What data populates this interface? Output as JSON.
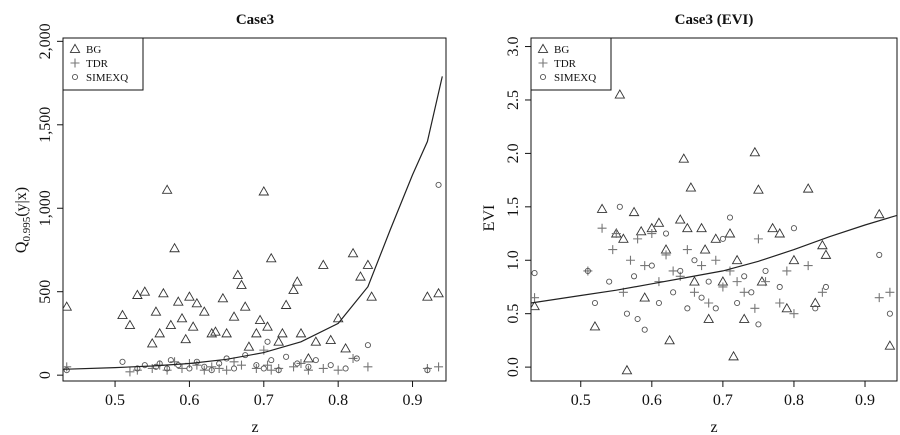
{
  "chart_data": [
    {
      "type": "scatter",
      "title": "Case3",
      "xlabel": "z",
      "ylabel_main": "Q",
      "ylabel_sub": "0.995",
      "ylabel_rest": "(y|x)",
      "xlim": [
        0.43,
        0.945
      ],
      "ylim": [
        0,
        2000
      ],
      "xticks": [
        0.5,
        0.6,
        0.7,
        0.8,
        0.9
      ],
      "xtick_labels": [
        "0.5",
        "0.6",
        "0.7",
        "0.8",
        "0.9"
      ],
      "yticks": [
        0,
        500,
        1000,
        1500,
        2000
      ],
      "ytick_labels": [
        "0",
        "500",
        "1,000",
        "1,500",
        "2,000"
      ],
      "legend": {
        "position": "top-left",
        "entries": [
          {
            "label": "BG",
            "marker": "triangle"
          },
          {
            "label": "TDR",
            "marker": "plus"
          },
          {
            "label": "SIMEXQ",
            "marker": "circle"
          }
        ]
      },
      "series": [
        {
          "name": "BG",
          "marker": "triangle",
          "points": [
            [
              0.435,
              410
            ],
            [
              0.51,
              360
            ],
            [
              0.52,
              300
            ],
            [
              0.53,
              480
            ],
            [
              0.54,
              500
            ],
            [
              0.55,
              190
            ],
            [
              0.555,
              380
            ],
            [
              0.56,
              250
            ],
            [
              0.565,
              490
            ],
            [
              0.57,
              1110
            ],
            [
              0.575,
              300
            ],
            [
              0.58,
              760
            ],
            [
              0.585,
              440
            ],
            [
              0.59,
              340
            ],
            [
              0.595,
              215
            ],
            [
              0.6,
              470
            ],
            [
              0.605,
              290
            ],
            [
              0.61,
              430
            ],
            [
              0.62,
              380
            ],
            [
              0.63,
              250
            ],
            [
              0.635,
              260
            ],
            [
              0.645,
              460
            ],
            [
              0.65,
              250
            ],
            [
              0.66,
              350
            ],
            [
              0.665,
              600
            ],
            [
              0.67,
              540
            ],
            [
              0.675,
              410
            ],
            [
              0.68,
              170
            ],
            [
              0.69,
              250
            ],
            [
              0.695,
              330
            ],
            [
              0.7,
              1100
            ],
            [
              0.705,
              290
            ],
            [
              0.71,
              700
            ],
            [
              0.72,
              200
            ],
            [
              0.725,
              250
            ],
            [
              0.73,
              420
            ],
            [
              0.74,
              510
            ],
            [
              0.745,
              560
            ],
            [
              0.75,
              250
            ],
            [
              0.76,
              100
            ],
            [
              0.77,
              200
            ],
            [
              0.78,
              660
            ],
            [
              0.79,
              210
            ],
            [
              0.8,
              340
            ],
            [
              0.81,
              160
            ],
            [
              0.82,
              730
            ],
            [
              0.83,
              590
            ],
            [
              0.84,
              660
            ],
            [
              0.845,
              470
            ],
            [
              0.92,
              470
            ],
            [
              0.935,
              490
            ]
          ]
        },
        {
          "name": "TDR",
          "marker": "plus",
          "points": [
            [
              0.435,
              50
            ],
            [
              0.52,
              20
            ],
            [
              0.53,
              30
            ],
            [
              0.55,
              40
            ],
            [
              0.56,
              60
            ],
            [
              0.57,
              30
            ],
            [
              0.58,
              80
            ],
            [
              0.59,
              40
            ],
            [
              0.6,
              70
            ],
            [
              0.61,
              60
            ],
            [
              0.62,
              30
            ],
            [
              0.63,
              50
            ],
            [
              0.64,
              40
            ],
            [
              0.65,
              30
            ],
            [
              0.66,
              80
            ],
            [
              0.67,
              60
            ],
            [
              0.69,
              40
            ],
            [
              0.7,
              150
            ],
            [
              0.705,
              60
            ],
            [
              0.71,
              30
            ],
            [
              0.72,
              40
            ],
            [
              0.74,
              50
            ],
            [
              0.75,
              70
            ],
            [
              0.76,
              30
            ],
            [
              0.78,
              40
            ],
            [
              0.8,
              30
            ],
            [
              0.82,
              100
            ],
            [
              0.84,
              50
            ],
            [
              0.92,
              40
            ],
            [
              0.935,
              50
            ]
          ]
        },
        {
          "name": "SIMEXQ",
          "marker": "circle",
          "points": [
            [
              0.435,
              30
            ],
            [
              0.51,
              80
            ],
            [
              0.53,
              40
            ],
            [
              0.54,
              60
            ],
            [
              0.555,
              50
            ],
            [
              0.56,
              70
            ],
            [
              0.57,
              40
            ],
            [
              0.575,
              90
            ],
            [
              0.585,
              60
            ],
            [
              0.6,
              40
            ],
            [
              0.61,
              80
            ],
            [
              0.62,
              50
            ],
            [
              0.63,
              30
            ],
            [
              0.64,
              70
            ],
            [
              0.65,
              100
            ],
            [
              0.66,
              40
            ],
            [
              0.675,
              120
            ],
            [
              0.69,
              60
            ],
            [
              0.7,
              40
            ],
            [
              0.705,
              200
            ],
            [
              0.71,
              90
            ],
            [
              0.72,
              30
            ],
            [
              0.73,
              110
            ],
            [
              0.745,
              70
            ],
            [
              0.76,
              50
            ],
            [
              0.77,
              90
            ],
            [
              0.79,
              60
            ],
            [
              0.81,
              40
            ],
            [
              0.825,
              100
            ],
            [
              0.84,
              180
            ],
            [
              0.92,
              30
            ],
            [
              0.935,
              1140
            ]
          ]
        },
        {
          "name": "",
          "marker": "line",
          "points": [
            [
              0.43,
              35
            ],
            [
              0.5,
              45
            ],
            [
              0.55,
              55
            ],
            [
              0.6,
              70
            ],
            [
              0.65,
              95
            ],
            [
              0.7,
              135
            ],
            [
              0.75,
              200
            ],
            [
              0.8,
              310
            ],
            [
              0.84,
              530
            ],
            [
              0.87,
              870
            ],
            [
              0.9,
              1200
            ],
            [
              0.92,
              1400
            ],
            [
              0.94,
              1790
            ]
          ]
        }
      ]
    },
    {
      "type": "scatter",
      "title": "Case3 (EVI)",
      "xlabel": "z",
      "ylabel": "EVI",
      "xlim": [
        0.43,
        0.945
      ],
      "ylim": [
        0,
        3
      ],
      "xticks": [
        0.5,
        0.6,
        0.7,
        0.8,
        0.9
      ],
      "xtick_labels": [
        "0.5",
        "0.6",
        "0.7",
        "0.8",
        "0.9"
      ],
      "yticks": [
        0,
        0.5,
        1,
        1.5,
        2,
        2.5,
        3
      ],
      "ytick_labels": [
        "0.0",
        "0.5",
        "1.0",
        "1.5",
        "2.0",
        "2.5",
        "3.0"
      ],
      "legend": {
        "position": "top-left",
        "entries": [
          {
            "label": "BG",
            "marker": "triangle"
          },
          {
            "label": "TDR",
            "marker": "plus"
          },
          {
            "label": "SIMEXQ",
            "marker": "circle"
          }
        ]
      },
      "series": [
        {
          "name": "BG",
          "marker": "triangle",
          "points": [
            [
              0.435,
              0.57
            ],
            [
              0.52,
              0.38
            ],
            [
              0.53,
              1.48
            ],
            [
              0.55,
              1.25
            ],
            [
              0.555,
              2.55
            ],
            [
              0.56,
              1.2
            ],
            [
              0.565,
              -0.03
            ],
            [
              0.575,
              1.45
            ],
            [
              0.585,
              1.27
            ],
            [
              0.59,
              0.65
            ],
            [
              0.6,
              1.3
            ],
            [
              0.61,
              1.35
            ],
            [
              0.62,
              1.1
            ],
            [
              0.625,
              0.25
            ],
            [
              0.64,
              1.38
            ],
            [
              0.645,
              1.95
            ],
            [
              0.65,
              1.3
            ],
            [
              0.655,
              1.68
            ],
            [
              0.66,
              0.8
            ],
            [
              0.67,
              1.3
            ],
            [
              0.675,
              1.1
            ],
            [
              0.68,
              0.45
            ],
            [
              0.69,
              1.2
            ],
            [
              0.7,
              0.8
            ],
            [
              0.71,
              1.25
            ],
            [
              0.715,
              0.1
            ],
            [
              0.72,
              1.0
            ],
            [
              0.73,
              0.45
            ],
            [
              0.745,
              2.01
            ],
            [
              0.75,
              1.66
            ],
            [
              0.755,
              0.8
            ],
            [
              0.77,
              1.3
            ],
            [
              0.78,
              1.25
            ],
            [
              0.79,
              0.55
            ],
            [
              0.8,
              1.0
            ],
            [
              0.82,
              1.67
            ],
            [
              0.83,
              0.6
            ],
            [
              0.84,
              1.14
            ],
            [
              0.845,
              1.05
            ],
            [
              0.92,
              1.43
            ],
            [
              0.935,
              0.2
            ]
          ]
        },
        {
          "name": "TDR",
          "marker": "plus",
          "points": [
            [
              0.435,
              0.65
            ],
            [
              0.51,
              0.9
            ],
            [
              0.53,
              1.3
            ],
            [
              0.545,
              1.1
            ],
            [
              0.55,
              1.25
            ],
            [
              0.56,
              0.7
            ],
            [
              0.57,
              1.0
            ],
            [
              0.58,
              1.2
            ],
            [
              0.59,
              0.95
            ],
            [
              0.6,
              1.25
            ],
            [
              0.61,
              0.8
            ],
            [
              0.62,
              1.05
            ],
            [
              0.63,
              0.9
            ],
            [
              0.64,
              0.85
            ],
            [
              0.65,
              1.1
            ],
            [
              0.66,
              0.7
            ],
            [
              0.67,
              0.95
            ],
            [
              0.68,
              0.6
            ],
            [
              0.69,
              1.0
            ],
            [
              0.7,
              0.75
            ],
            [
              0.71,
              0.9
            ],
            [
              0.72,
              0.8
            ],
            [
              0.73,
              0.7
            ],
            [
              0.745,
              0.55
            ],
            [
              0.75,
              1.2
            ],
            [
              0.76,
              0.8
            ],
            [
              0.78,
              0.6
            ],
            [
              0.79,
              0.9
            ],
            [
              0.8,
              0.5
            ],
            [
              0.82,
              0.95
            ],
            [
              0.84,
              0.7
            ],
            [
              0.92,
              0.65
            ],
            [
              0.935,
              0.7
            ]
          ]
        },
        {
          "name": "SIMEXQ",
          "marker": "circle",
          "points": [
            [
              0.435,
              0.88
            ],
            [
              0.51,
              0.9
            ],
            [
              0.52,
              0.6
            ],
            [
              0.54,
              0.8
            ],
            [
              0.555,
              1.5
            ],
            [
              0.565,
              0.5
            ],
            [
              0.575,
              0.85
            ],
            [
              0.58,
              0.45
            ],
            [
              0.59,
              0.35
            ],
            [
              0.6,
              0.95
            ],
            [
              0.61,
              0.6
            ],
            [
              0.62,
              1.25
            ],
            [
              0.63,
              0.7
            ],
            [
              0.64,
              0.9
            ],
            [
              0.65,
              0.55
            ],
            [
              0.66,
              1.0
            ],
            [
              0.67,
              0.65
            ],
            [
              0.68,
              0.8
            ],
            [
              0.69,
              0.55
            ],
            [
              0.7,
              1.2
            ],
            [
              0.71,
              1.4
            ],
            [
              0.72,
              0.6
            ],
            [
              0.73,
              0.85
            ],
            [
              0.74,
              0.7
            ],
            [
              0.75,
              0.4
            ],
            [
              0.76,
              0.9
            ],
            [
              0.78,
              0.75
            ],
            [
              0.8,
              1.3
            ],
            [
              0.83,
              0.55
            ],
            [
              0.845,
              0.75
            ],
            [
              0.92,
              1.05
            ],
            [
              0.935,
              0.5
            ]
          ]
        },
        {
          "name": "",
          "marker": "line",
          "points": [
            [
              0.43,
              0.6
            ],
            [
              0.5,
              0.67
            ],
            [
              0.55,
              0.72
            ],
            [
              0.6,
              0.78
            ],
            [
              0.65,
              0.84
            ],
            [
              0.7,
              0.9
            ],
            [
              0.75,
              0.99
            ],
            [
              0.8,
              1.1
            ],
            [
              0.85,
              1.22
            ],
            [
              0.9,
              1.33
            ],
            [
              0.945,
              1.42
            ]
          ]
        }
      ]
    }
  ]
}
